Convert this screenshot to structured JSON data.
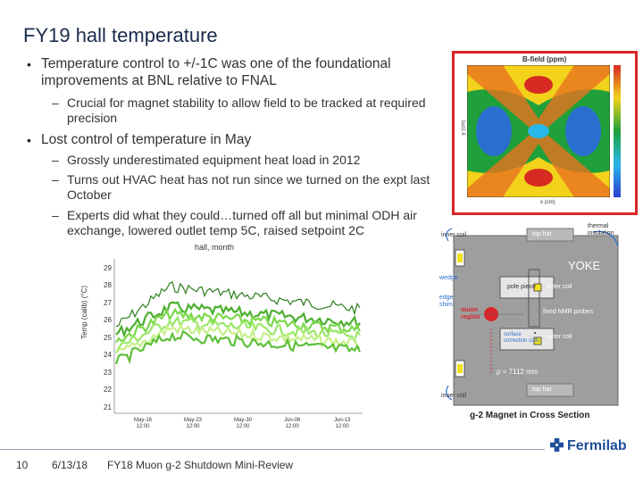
{
  "slide": {
    "title": "FY19 hall temperature",
    "bullets": [
      {
        "text": "Temperature control to +/-1C was one of the foundational improvements at BNL relative to FNAL",
        "subs": [
          "Crucial for magnet stability to allow field to be tracked at required precision"
        ]
      },
      {
        "text": "Lost control of temperature in May",
        "subs": [
          "Grossly underestimated equipment heat load in 2012",
          "Turns out HVAC heat has not run since we turned on the expt last October",
          "Experts did what they could…turned off all but minimal ODH air exchange, lowered outlet temp 5C, raised setpoint 2C"
        ]
      }
    ],
    "bullet_marker": "•",
    "sub_marker": "–"
  },
  "temp_chart": {
    "title": "hall, month",
    "ylabel": "Temp (calib) (°C)",
    "y_ticks": [
      "29",
      "28",
      "27",
      "26",
      "25",
      "24",
      "23",
      "22",
      "21"
    ],
    "x_ticks": [
      {
        "top": "May-16",
        "bottom": "12:00"
      },
      {
        "top": "May-23",
        "bottom": "12:00"
      },
      {
        "top": "May-30",
        "bottom": "12:00"
      },
      {
        "top": "Jun-06",
        "bottom": "12:00"
      },
      {
        "top": "Jun-13",
        "bottom": "12:00"
      }
    ]
  },
  "bfield": {
    "title": "B-field (ppm)",
    "ylabel": "y (cm)",
    "xlabel": "x (cm)",
    "border_color": "#d9252a"
  },
  "magnet": {
    "caption": "g-2 Magnet in Cross Section",
    "labels": {
      "inner_coil_top": "inner coil",
      "top_hat_top": "top hat",
      "thermal_insulation": "thermal insulation",
      "yoke": "YOKE",
      "wedge": "wedge",
      "edge_shim": "edge shim",
      "pole_piece": "pole piece",
      "outer_coil_top": "outer coil",
      "muon_region": "muon region",
      "fixed_nmr": "fixed NMR probes",
      "surface_coils": "surface correction coils",
      "outer_coil_bottom": "outer coil",
      "rho": "ρ = 7112 mm",
      "inner_coil_bottom": "inner coil",
      "top_hat_bottom": "top hat"
    }
  },
  "footer": {
    "page": "10",
    "date": "6/13/18",
    "event": "FY18 Muon g-2 Shutdown Mini-Review",
    "brand": "Fermilab"
  },
  "colors": {
    "title": "#1a2b4c",
    "accent_red": "#d9252a",
    "brand_blue": "#1f4e9a",
    "yoke_gray": "#9e9e9e"
  }
}
